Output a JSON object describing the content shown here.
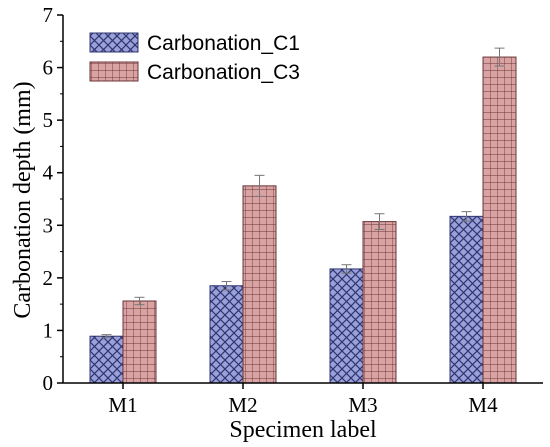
{
  "chart_data": {
    "type": "bar",
    "title": "",
    "xlabel": "Specimen label",
    "ylabel": "Carbonation depth (mm)",
    "categories": [
      "M1",
      "M2",
      "M3",
      "M4"
    ],
    "ylim": [
      0,
      7
    ],
    "yticks": [
      0,
      1,
      2,
      3,
      4,
      5,
      6,
      7
    ],
    "grid": false,
    "legend_position": "top-left",
    "series": [
      {
        "name": "Carbonation_C1",
        "values": [
          0.89,
          1.85,
          2.17,
          3.17
        ],
        "errors": [
          0.03,
          0.08,
          0.08,
          0.09
        ],
        "color": "#9aa0d8",
        "hatch": "diagonal-cross"
      },
      {
        "name": "Carbonation_C3",
        "values": [
          1.56,
          3.75,
          3.07,
          6.2
        ],
        "errors": [
          0.07,
          0.2,
          0.15,
          0.17
        ],
        "color": "#d9a3a3",
        "hatch": "grid"
      }
    ]
  }
}
